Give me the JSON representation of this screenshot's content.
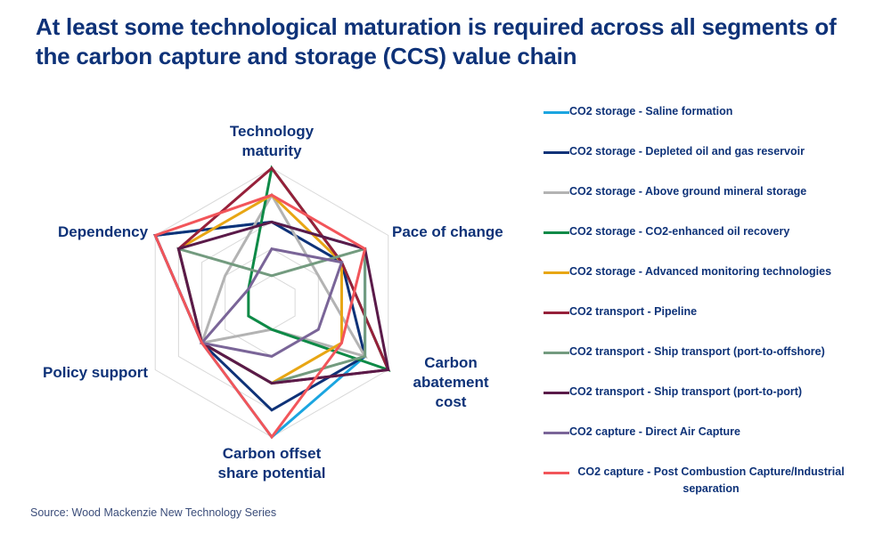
{
  "title": "At least some technological maturation is required across all segments of the carbon capture and storage (CCS) value chain",
  "source": "Source: Wood Mackenzie New Technology Series",
  "axes": {
    "technology_maturity": "Technology maturity",
    "pace_of_change": "Pace of change",
    "carbon_abatement_cost": "Carbon abatement cost",
    "carbon_offset_share_potential": "Carbon offset share potential",
    "policy_support": "Policy support",
    "dependency": "Dependency"
  },
  "legend": [
    {
      "label": "CO2 storage - Saline formation",
      "color": "#1ba5e0"
    },
    {
      "label": "CO2 storage - Depleted oil and gas reservoir",
      "color": "#0e3278"
    },
    {
      "label": "CO2 storage - Above ground mineral storage",
      "color": "#b3b3b3"
    },
    {
      "label": "CO2 storage - CO2-enhanced oil recovery",
      "color": "#0e8a47"
    },
    {
      "label": "CO2 storage - Advanced monitoring technologies",
      "color": "#e8a614"
    },
    {
      "label": "CO2 transport - Pipeline",
      "color": "#96203a"
    },
    {
      "label": "CO2 transport - Ship transport (port-to-offshore)",
      "color": "#739b7f"
    },
    {
      "label": "CO2 transport - Ship transport (port-to-port)",
      "color": "#5a1a49"
    },
    {
      "label": "CO2 capture - Direct Air Capture",
      "color": "#7a6598"
    },
    {
      "label": "CO2 capture - Post Combustion Capture/Industrial separation",
      "color": "#f2555a"
    }
  ],
  "chart_data": {
    "type": "radar",
    "title": "At least some technological maturation is required across all segments of the carbon capture and storage (CCS) value chain",
    "categories": [
      "Technology maturity",
      "Pace of change",
      "Carbon abatement cost",
      "Carbon offset share potential",
      "Policy support",
      "Dependency"
    ],
    "range": [
      0,
      5
    ],
    "rings": 5,
    "grid": true,
    "legend_position": "right",
    "series": [
      {
        "name": "CO2 storage - Saline formation",
        "color": "#1ba5e0",
        "values": [
          3,
          4,
          4,
          5,
          3,
          5
        ]
      },
      {
        "name": "CO2 storage - Depleted oil and gas reservoir",
        "color": "#0e3278",
        "values": [
          3,
          3,
          4,
          4,
          3,
          5
        ]
      },
      {
        "name": "CO2 storage - Above ground mineral storage",
        "color": "#b3b3b3",
        "values": [
          4,
          2,
          4,
          1,
          3,
          2
        ]
      },
      {
        "name": "CO2 storage - CO2-enhanced oil recovery",
        "color": "#0e8a47",
        "values": [
          5,
          3,
          5,
          1,
          1,
          1
        ]
      },
      {
        "name": "CO2 storage - Advanced monitoring technologies",
        "color": "#e8a614",
        "values": [
          4,
          3,
          3,
          3,
          3,
          4
        ]
      },
      {
        "name": "CO2 transport - Pipeline",
        "color": "#96203a",
        "values": [
          5,
          3,
          5,
          3,
          3,
          4
        ]
      },
      {
        "name": "CO2 transport - Ship transport (port-to-offshore)",
        "color": "#739b7f",
        "values": [
          1,
          4,
          4,
          3,
          3,
          4
        ]
      },
      {
        "name": "CO2 transport - Ship transport (port-to-port)",
        "color": "#5a1a49",
        "values": [
          3,
          4,
          5,
          3,
          3,
          4
        ]
      },
      {
        "name": "CO2 capture - Direct Air Capture",
        "color": "#7a6598",
        "values": [
          2,
          3,
          2,
          2,
          3,
          1
        ]
      },
      {
        "name": "CO2 capture - Post Combustion Capture/Industrial separation",
        "color": "#f2555a",
        "values": [
          4,
          4,
          3,
          5,
          3,
          5
        ]
      }
    ],
    "source": "Source: Wood Mackenzie New Technology Series"
  }
}
